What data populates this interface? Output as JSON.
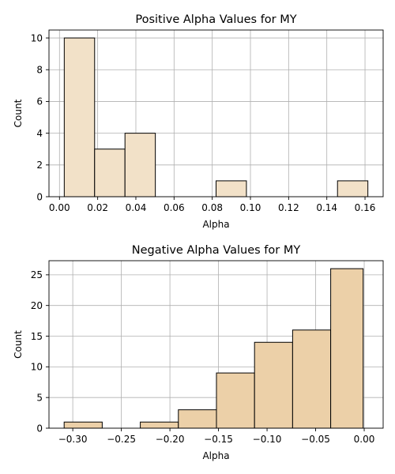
{
  "chart_data": [
    {
      "type": "bar",
      "title": "Positive Alpha Values for MY",
      "xlabel": "Alpha",
      "ylabel": "Count",
      "xlim": [
        -0.0055,
        0.1695
      ],
      "ylim": [
        0,
        10.5
      ],
      "xticks": [
        "0.00",
        "0.02",
        "0.04",
        "0.06",
        "0.08",
        "0.10",
        "0.12",
        "0.14",
        "0.16"
      ],
      "yticks": [
        "0",
        "2",
        "4",
        "6",
        "8",
        "10"
      ],
      "bin_edges": [
        0.0025,
        0.0184,
        0.0343,
        0.0502,
        0.0661,
        0.082,
        0.0979,
        0.1138,
        0.1297,
        0.1456,
        0.1615
      ],
      "values": [
        10,
        3,
        4,
        0,
        0,
        1,
        0,
        0,
        0,
        1
      ],
      "bar_color": "#f2e1c8",
      "grid": true
    },
    {
      "type": "bar",
      "title": "Negative Alpha Values for MY",
      "xlabel": "Alpha",
      "ylabel": "Count",
      "xlim": [
        -0.3245,
        0.0195
      ],
      "ylim": [
        0,
        27.3
      ],
      "xticks": [
        "-0.30",
        "-0.25",
        "-0.20",
        "-0.15",
        "-0.10",
        "-0.05",
        "0.00"
      ],
      "yticks": [
        "0",
        "5",
        "10",
        "15",
        "20",
        "25"
      ],
      "bin_edges": [
        -0.3089,
        -0.2697,
        -0.2305,
        -0.1913,
        -0.1521,
        -0.1129,
        -0.0737,
        -0.0345,
        -0.0011
      ],
      "values": [
        1,
        0,
        1,
        3,
        9,
        14,
        16,
        26
      ],
      "bar_color": "#ecd0a8",
      "grid": true
    }
  ]
}
